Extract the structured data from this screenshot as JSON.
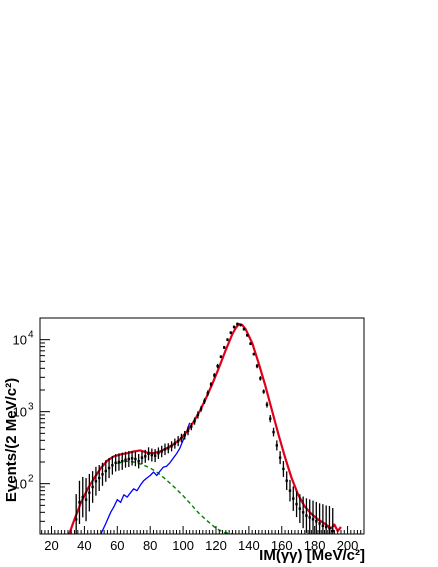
{
  "chart_data": {
    "type": "line",
    "xlabel": "IM(γγ) [MeV/c²]",
    "ylabel": "Events/(2 MeV/c²)",
    "xlim": [
      13,
      210
    ],
    "ylim": [
      20,
      20000
    ],
    "y_scale": "log",
    "grid": false,
    "x_ticks": [
      20,
      40,
      60,
      80,
      100,
      120,
      140,
      160,
      180,
      200
    ],
    "y_ticks": [
      {
        "value": 100,
        "label": "10",
        "exp": "2"
      },
      {
        "value": 1000,
        "label": "10",
        "exp": "3"
      },
      {
        "value": 10000,
        "label": "10",
        "exp": "4"
      }
    ],
    "colors": {
      "data": "#000000",
      "total_fit": "#e0001b",
      "signal_mc": "#0000ff",
      "background": "#008000"
    },
    "series": [
      {
        "key": "data",
        "style": "points_with_errors",
        "x": [
          35,
          37,
          39,
          41,
          43,
          45,
          47,
          49,
          51,
          53,
          55,
          57,
          59,
          61,
          63,
          65,
          67,
          69,
          71,
          73,
          75,
          77,
          79,
          81,
          83,
          85,
          87,
          89,
          91,
          93,
          95,
          97,
          99,
          101,
          103,
          105,
          107,
          109,
          111,
          113,
          115,
          117,
          119,
          121,
          123,
          125,
          127,
          129,
          131,
          133,
          135,
          137,
          139,
          141,
          143,
          145,
          147,
          149,
          151,
          153,
          155,
          157,
          159,
          161,
          163,
          165,
          167,
          169,
          171,
          173,
          175,
          177,
          179,
          181,
          183,
          185,
          187,
          189,
          191
        ],
        "y": [
          32,
          55,
          65,
          60,
          75,
          90,
          108,
          120,
          135,
          150,
          165,
          180,
          195,
          200,
          205,
          215,
          220,
          225,
          220,
          205,
          230,
          240,
          260,
          250,
          245,
          265,
          280,
          300,
          310,
          330,
          360,
          390,
          430,
          470,
          540,
          620,
          740,
          900,
          1100,
          1400,
          1800,
          2400,
          3200,
          4300,
          5800,
          7800,
          10000,
          12500,
          15000,
          16500,
          16000,
          14000,
          11500,
          8800,
          6300,
          4300,
          2900,
          1900,
          1250,
          800,
          520,
          340,
          230,
          160,
          110,
          80,
          62,
          52,
          45,
          40,
          36,
          34,
          32,
          30,
          28,
          26,
          25,
          24,
          22
        ],
        "err": [
          0.35,
          0.3,
          0.28,
          0.3,
          0.26,
          0.22,
          0.2,
          0.18,
          0.16,
          0.15,
          0.14,
          0.13,
          0.12,
          0.12,
          0.12,
          0.11,
          0.11,
          0.1,
          0.1,
          0.1,
          0.09,
          0.09,
          0.09,
          0.09,
          0.09,
          0.08,
          0.08,
          0.08,
          0.07,
          0.07,
          0.07,
          0.07,
          0.06,
          0.06,
          0.06,
          0.05,
          0.05,
          0.05,
          0.04,
          0.04,
          0.04,
          0.03,
          0.03,
          0.03,
          0.02,
          0.02,
          0.02,
          0.02,
          0.02,
          0.02,
          0.02,
          0.02,
          0.02,
          0.02,
          0.02,
          0.03,
          0.03,
          0.03,
          0.04,
          0.05,
          0.06,
          0.07,
          0.09,
          0.11,
          0.13,
          0.15,
          0.17,
          0.18,
          0.2,
          0.22,
          0.24,
          0.25,
          0.26,
          0.27,
          0.28,
          0.3,
          0.3,
          0.31,
          0.32
        ]
      },
      {
        "key": "total_fit",
        "style": "line",
        "x": [
          30,
          34,
          38,
          42,
          46,
          50,
          54,
          58,
          62,
          66,
          70,
          74,
          78,
          82,
          86,
          90,
          94,
          98,
          102,
          106,
          110,
          114,
          118,
          122,
          126,
          130,
          132,
          134,
          136,
          138,
          142,
          146,
          150,
          154,
          158,
          162,
          166,
          170,
          174,
          178,
          182,
          186,
          190,
          192,
          194,
          196
        ],
        "y": [
          18,
          32,
          55,
          85,
          120,
          165,
          210,
          240,
          255,
          265,
          280,
          290,
          270,
          265,
          280,
          310,
          350,
          410,
          520,
          700,
          1000,
          1550,
          2500,
          4200,
          7200,
          12000,
          14500,
          16500,
          16000,
          14000,
          9000,
          4700,
          2300,
          1050,
          480,
          230,
          120,
          70,
          48,
          38,
          32,
          28,
          24,
          27,
          22,
          25
        ]
      },
      {
        "key": "signal_mc",
        "style": "line",
        "x": [
          50,
          53,
          56,
          58,
          60,
          62,
          64,
          66,
          68,
          70,
          72,
          74,
          76,
          78,
          80,
          82,
          84,
          86,
          88,
          90,
          92,
          94,
          96,
          98,
          100,
          102,
          104
        ],
        "y": [
          20,
          28,
          40,
          48,
          60,
          55,
          70,
          65,
          75,
          85,
          80,
          95,
          110,
          120,
          130,
          145,
          130,
          150,
          170,
          175,
          195,
          225,
          260,
          310,
          400,
          520,
          700
        ]
      },
      {
        "key": "background",
        "style": "dashed",
        "x": [
          60,
          65,
          70,
          75,
          80,
          85,
          90,
          95,
          100,
          105,
          110,
          115,
          120,
          125,
          130
        ],
        "y": [
          190,
          205,
          200,
          185,
          165,
          140,
          112,
          88,
          68,
          51,
          38,
          30,
          24,
          21,
          20
        ]
      }
    ]
  }
}
